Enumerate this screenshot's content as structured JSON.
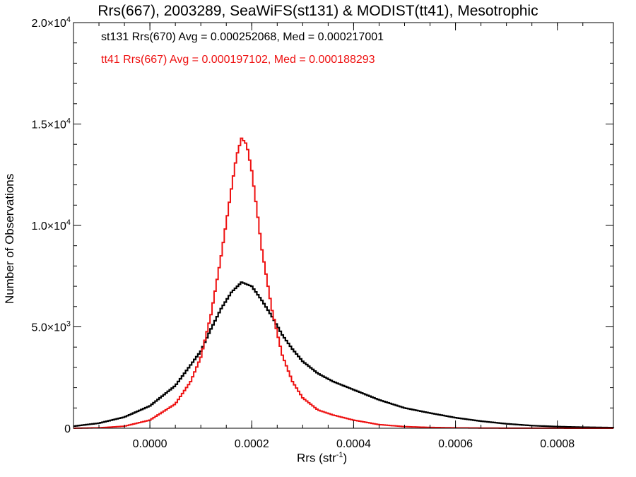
{
  "chart_data": {
    "type": "line",
    "title": "Rrs(667), 2003289, SeaWiFS(st131) & MODIST(tt41), Mesotrophic",
    "xlabel_base": "Rrs (str",
    "xlabel_sup": "-1",
    "xlabel_end": ")",
    "ylabel": "Number of Observations",
    "xlim": [
      -0.00015,
      0.00091
    ],
    "ylim": [
      0,
      20000
    ],
    "x_ticks": [
      {
        "value": 0.0,
        "label": "0.0000"
      },
      {
        "value": 0.0002,
        "label": "0.0002"
      },
      {
        "value": 0.0004,
        "label": "0.0004"
      },
      {
        "value": 0.0006,
        "label": "0.0006"
      },
      {
        "value": 0.0008,
        "label": "0.0008"
      }
    ],
    "y_ticks": [
      {
        "value": 0,
        "mant": "0",
        "exp": ""
      },
      {
        "value": 5000,
        "mant": "5.0×10",
        "exp": "3"
      },
      {
        "value": 10000,
        "mant": "1.0×10",
        "exp": "4"
      },
      {
        "value": 15000,
        "mant": "1.5×10",
        "exp": "4"
      },
      {
        "value": 20000,
        "mant": "2.0×10",
        "exp": "4"
      }
    ],
    "annotations": [
      {
        "text": "st131 Rrs(670) Avg = 0.000252068, Med = 0.000217001",
        "color": "#000000"
      },
      {
        "text": "tt41 Rrs(667) Avg = 0.000197102, Med = 0.000188293",
        "color": "#ee1111"
      }
    ],
    "series": [
      {
        "color": "#000000",
        "x": [
          -0.00015,
          -0.0001,
          -5e-05,
          0.0,
          5e-05,
          0.0001,
          0.00012,
          0.00014,
          0.00016,
          0.00018,
          0.0002,
          0.00022,
          0.00024,
          0.00026,
          0.00028,
          0.0003,
          0.00033,
          0.00036,
          0.0004,
          0.00045,
          0.0005,
          0.00055,
          0.0006,
          0.00065,
          0.0007,
          0.00075,
          0.0008,
          0.00085,
          0.00091
        ],
        "y": [
          100,
          250,
          550,
          1100,
          2100,
          3800,
          4900,
          5900,
          6700,
          7200,
          7000,
          6300,
          5500,
          4600,
          3900,
          3300,
          2700,
          2300,
          1900,
          1400,
          1000,
          750,
          520,
          350,
          220,
          130,
          80,
          50,
          30
        ]
      },
      {
        "color": "#ee1111",
        "x": [
          -0.00015,
          -0.0001,
          -5e-05,
          0.0,
          5e-05,
          8e-05,
          0.0001,
          0.00012,
          0.00014,
          0.00016,
          0.00017,
          0.00018,
          0.00019,
          0.0002,
          0.00021,
          0.00022,
          0.00024,
          0.00026,
          0.00028,
          0.0003,
          0.00033,
          0.00036,
          0.0004,
          0.00045,
          0.0005,
          0.00055,
          0.0006,
          0.00065,
          0.0007,
          0.00091
        ],
        "y": [
          0,
          20,
          100,
          400,
          1200,
          2300,
          3500,
          5600,
          8500,
          11800,
          13400,
          14300,
          14000,
          12700,
          10800,
          8800,
          5800,
          3600,
          2300,
          1500,
          900,
          650,
          400,
          180,
          80,
          40,
          20,
          10,
          5,
          0
        ]
      }
    ]
  }
}
